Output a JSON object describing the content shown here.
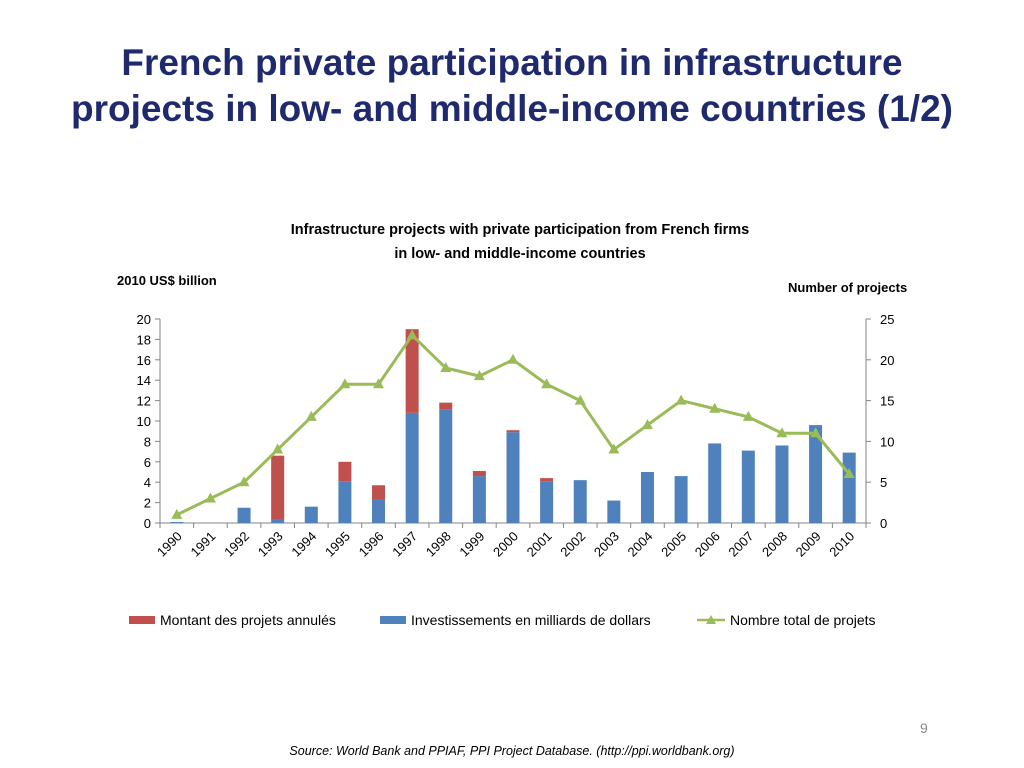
{
  "slide": {
    "title_line1": "French private participation in infrastructure",
    "title_line2": "projects in low- and middle-income countries (1/2)",
    "page_number": "9",
    "source": "Source: World Bank and PPIAF, PPI Project Database. (http://ppi.worldbank.org)"
  },
  "chart_data": {
    "type": "bar",
    "title_line1": "Infrastructure projects with private participation from French firms",
    "title_line2": "in low- and middle-income countries",
    "ylabel": "2010 US$ billion",
    "y2label": "Number of projects",
    "ylim": [
      0,
      20
    ],
    "y2lim": [
      0,
      25
    ],
    "yticks": [
      "0",
      "2",
      "4",
      "6",
      "8",
      "10",
      "12",
      "14",
      "16",
      "18",
      "20"
    ],
    "y2ticks": [
      "0",
      "5",
      "10",
      "15",
      "20",
      "25"
    ],
    "categories": [
      "1990",
      "1991",
      "1992",
      "1993",
      "1994",
      "1995",
      "1996",
      "1997",
      "1998",
      "1999",
      "2000",
      "2001",
      "2002",
      "2003",
      "2004",
      "2005",
      "2006",
      "2007",
      "2008",
      "2009",
      "2010"
    ],
    "series": [
      {
        "name": "Montant des projets annulés",
        "kind": "bar-stacked",
        "color": "#c0504d",
        "values": [
          0,
          0,
          0,
          6.3,
          0,
          1.9,
          1.4,
          8.2,
          0.7,
          0.5,
          0.2,
          0.3,
          0,
          0,
          0,
          0,
          0,
          0,
          0,
          0,
          0
        ]
      },
      {
        "name": "Investissements en milliards de dollars",
        "kind": "bar-stacked",
        "color": "#4f81bd",
        "values": [
          0.1,
          0,
          1.5,
          0.3,
          1.6,
          4.1,
          2.3,
          10.8,
          11.1,
          4.6,
          8.9,
          4.1,
          4.2,
          2.2,
          5.0,
          4.6,
          7.8,
          7.1,
          7.6,
          9.6,
          6.9
        ]
      },
      {
        "name": "Nombre total de projets",
        "kind": "line",
        "axis": "right",
        "color": "#9bbb59",
        "values": [
          1,
          3,
          5,
          9,
          13,
          17,
          17,
          23,
          19,
          18,
          20,
          17,
          15,
          9,
          12,
          15,
          14,
          13,
          11,
          11,
          6
        ]
      }
    ],
    "legend_position": "bottom",
    "grid": false
  }
}
